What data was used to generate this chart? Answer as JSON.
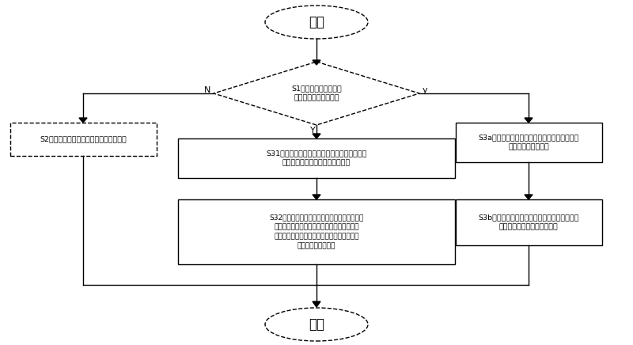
{
  "title": "开始",
  "end_label": "结束",
  "diamond_text": "S1、判定太阳能系统和\n市电系统通信是否止常",
  "diamond_n": "N",
  "diamond_y_below": "Y",
  "diamond_y_right": "y",
  "box_s2": "S2、设定所述市电系统为固定的浮充状态",
  "box_s31_l1": "S31、所述市电系统从所述太阳能系统获取所述",
  "box_s31_l2": "太阳能系统的均充电压和浮充电压",
  "box_s3a_l1": "S3a、所述太阳能系统从所述市电系统获取所述",
  "box_s3a_l2": "市电系统的充电状态",
  "box_s32_l1": "S32、控制所述市电系统的均充电压小于或等于",
  "box_s32_l2": "所述太阳能系统的均充电压的守值，且所述市",
  "box_s32_l3": "电系统的浮充电压小于或等于所述太阳能系统",
  "box_s32_l4": "的浮充电压的下限。",
  "box_s3b_l1": "S3b、所述太阳能系统基于获取的所述市电系统",
  "box_s3b_l2": "的充电状态进行均充或浮充。",
  "bg_color": "#ffffff",
  "line_color": "#000000",
  "text_color": "#000000",
  "figsize": [
    8.0,
    4.36
  ],
  "dpi": 100
}
